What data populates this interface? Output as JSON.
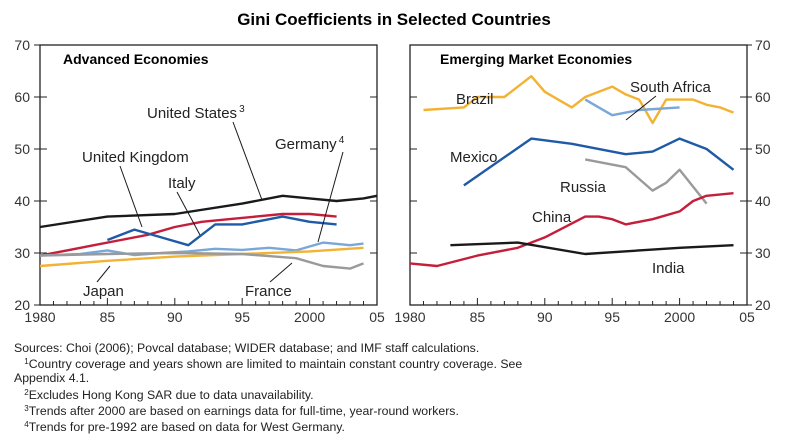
{
  "figure_title": "Gini Coefficients in Selected Countries",
  "colors": {
    "black": "#1a1a1a",
    "red": "#c41e3a",
    "blue": "#1f5aa6",
    "lightblue": "#7aa7d9",
    "orange": "#f2b233",
    "gray": "#9a9a9a"
  },
  "chart_data": [
    {
      "type": "line",
      "title": "Advanced Economies",
      "x_ticks": [
        "1980",
        "85",
        "90",
        "95",
        "2000",
        "05"
      ],
      "xlim": [
        1980,
        2005
      ],
      "y_ticks": [
        "20",
        "30",
        "40",
        "50",
        "60",
        "70"
      ],
      "ylim": [
        20,
        70
      ],
      "y_axis_side": "left",
      "series": [
        {
          "name": "United States",
          "footnote": "3",
          "color": "#1a1a1a",
          "x": [
            1980,
            1985,
            1990,
            1995,
            1998,
            2000,
            2002,
            2004,
            2005
          ],
          "y": [
            35,
            37,
            37.5,
            39.5,
            41,
            40.5,
            40,
            40.5,
            41
          ]
        },
        {
          "name": "United Kingdom",
          "color": "#c41e3a",
          "x": [
            1980,
            1982,
            1984,
            1986,
            1988,
            1990,
            1992,
            1994,
            1996,
            1998,
            2000,
            2002
          ],
          "y": [
            29.5,
            30.5,
            31.5,
            32.5,
            33.5,
            35,
            36,
            36.5,
            37,
            37.5,
            37.5,
            37
          ]
        },
        {
          "name": "Italy",
          "color": "#1f5aa6",
          "x": [
            1985,
            1987,
            1989,
            1991,
            1993,
            1995,
            1997,
            1998,
            2000,
            2002
          ],
          "y": [
            32.5,
            34.5,
            33,
            31.5,
            35.5,
            35.5,
            36.5,
            37,
            36,
            35.5
          ]
        },
        {
          "name": "Germany",
          "footnote": "4",
          "color": "#7aa7d9",
          "x": [
            1980,
            1983,
            1985,
            1987,
            1989,
            1991,
            1993,
            1995,
            1997,
            1999,
            2001,
            2003,
            2004
          ],
          "y": [
            29.5,
            29.8,
            30.5,
            29.6,
            30,
            30.3,
            30.8,
            30.6,
            31,
            30.5,
            32,
            31.5,
            31.8
          ]
        },
        {
          "name": "Japan",
          "color": "#f2b233",
          "x": [
            1980,
            1985,
            1990,
            1995,
            2000,
            2004
          ],
          "y": [
            27.5,
            28.5,
            29.3,
            29.8,
            30.3,
            31
          ]
        },
        {
          "name": "France",
          "color": "#9a9a9a",
          "x": [
            1980,
            1985,
            1990,
            1995,
            1999,
            2001,
            2003,
            2004
          ],
          "y": [
            29.5,
            29.8,
            30,
            29.8,
            29,
            27.5,
            27,
            28
          ]
        }
      ],
      "labels": [
        {
          "text": "United States",
          "sup": "3"
        },
        {
          "text": "United Kingdom"
        },
        {
          "text": "Italy"
        },
        {
          "text": "Germany",
          "sup": "4"
        },
        {
          "text": "Japan"
        },
        {
          "text": "France"
        }
      ]
    },
    {
      "type": "line",
      "title": "Emerging Market Economies",
      "x_ticks": [
        "1980",
        "85",
        "90",
        "95",
        "2000",
        "05"
      ],
      "xlim": [
        1980,
        2005
      ],
      "y_ticks": [
        "20",
        "30",
        "40",
        "50",
        "60",
        "70"
      ],
      "ylim": [
        20,
        70
      ],
      "y_axis_side": "right",
      "series": [
        {
          "name": "Brazil",
          "color": "#f2b233",
          "x": [
            1981,
            1984,
            1985,
            1987,
            1989,
            1990,
            1992,
            1993,
            1995,
            1996,
            1997,
            1998,
            1999,
            2001,
            2002,
            2003,
            2004
          ],
          "y": [
            57.5,
            58,
            60,
            60,
            64,
            61,
            58,
            60,
            62,
            60.5,
            59.5,
            55,
            59.5,
            59.5,
            58.5,
            58,
            57
          ]
        },
        {
          "name": "South Africa",
          "color": "#7aa7d9",
          "x": [
            1993,
            1995,
            1997,
            2000
          ],
          "y": [
            59.5,
            56.5,
            57.5,
            58
          ]
        },
        {
          "name": "Mexico",
          "color": "#1f5aa6",
          "x": [
            1984,
            1989,
            1992,
            1996,
            1998,
            2000,
            2002,
            2004
          ],
          "y": [
            43,
            52,
            51,
            49,
            49.5,
            52,
            50,
            46
          ]
        },
        {
          "name": "Russia",
          "color": "#9a9a9a",
          "x": [
            1993,
            1996,
            1998,
            1999,
            2000,
            2002
          ],
          "y": [
            48,
            46.5,
            42,
            43.5,
            46,
            39.5
          ]
        },
        {
          "name": "China",
          "color": "#c41e3a",
          "x": [
            1980,
            1982,
            1985,
            1988,
            1990,
            1993,
            1994,
            1995,
            1996,
            1998,
            2000,
            2001,
            2002,
            2004
          ],
          "y": [
            28,
            27.5,
            29.5,
            31,
            33,
            37,
            37,
            36.5,
            35.5,
            36.5,
            38,
            40,
            41,
            41.5
          ]
        },
        {
          "name": "India",
          "color": "#1a1a1a",
          "x": [
            1983,
            1988,
            1993,
            2000,
            2004
          ],
          "y": [
            31.5,
            32,
            29.8,
            31,
            31.5
          ]
        }
      ],
      "labels": [
        {
          "text": "Brazil"
        },
        {
          "text": "South Africa"
        },
        {
          "text": "Mexico"
        },
        {
          "text": "Russia"
        },
        {
          "text": "China"
        },
        {
          "text": "India"
        }
      ]
    }
  ],
  "notes": {
    "sources": "Sources: Choi (2006); Povcal database; WIDER database; and IMF staff calculations.",
    "fn1_mark": "1",
    "fn1_line1": "Country coverage and years shown are limited to maintain constant country coverage. See",
    "fn1_line2": "Appendix 4.1.",
    "fn2_mark": "2",
    "fn2": "Excludes Hong Kong SAR due to data unavailability.",
    "fn3_mark": "3",
    "fn3": "Trends after 2000 are based on earnings data for full-time, year-round workers.",
    "fn4_mark": "4",
    "fn4": "Trends for pre-1992 are based on data for West Germany."
  }
}
